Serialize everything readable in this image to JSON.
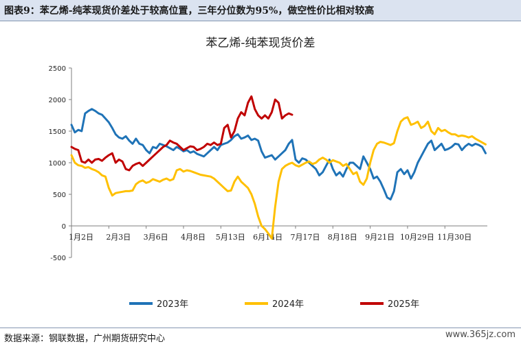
{
  "header": {
    "title": "图表9：苯乙烯-纯苯现货价差处于较高位置，三年分位数为95%，做空性价比相对较高"
  },
  "footer": {
    "source": "数据来源：钢联数据，广州期货研究中心",
    "watermark": "www.365jz.com"
  },
  "chart_data": {
    "type": "line",
    "title": "苯乙烯-纯苯现货价差",
    "x_tick_labels": [
      "1月2日",
      "2月3日",
      "3月6日",
      "4月8日",
      "5月13日",
      "6月14日",
      "7月17日",
      "8月18日",
      "9月21日",
      "10月29日",
      "11月30日"
    ],
    "x_tick_positions": [
      0,
      22,
      44,
      66,
      88,
      110,
      132,
      154,
      176,
      198,
      220
    ],
    "x_range": [
      0,
      245
    ],
    "ylim": [
      -500,
      2500
    ],
    "y_ticks": [
      -500,
      0,
      500,
      1000,
      1500,
      2000,
      2500
    ],
    "series": [
      {
        "name": "2023年",
        "color": "#1f73b7",
        "x": [
          0,
          2,
          4,
          6,
          8,
          10,
          12,
          14,
          16,
          18,
          20,
          22,
          24,
          26,
          28,
          30,
          32,
          34,
          36,
          38,
          40,
          42,
          44,
          46,
          48,
          50,
          52,
          54,
          56,
          58,
          60,
          62,
          64,
          66,
          68,
          70,
          72,
          74,
          76,
          78,
          80,
          82,
          84,
          86,
          88,
          90,
          92,
          94,
          96,
          98,
          100,
          102,
          104,
          106,
          108,
          110,
          112,
          114,
          116,
          118,
          120,
          122,
          124,
          126,
          128,
          130,
          132,
          134,
          136,
          138,
          140,
          142,
          144,
          146,
          148,
          150,
          152,
          154,
          156,
          158,
          160,
          162,
          164,
          166,
          168,
          170,
          172,
          174,
          176,
          178,
          180,
          182,
          184,
          186,
          188,
          190,
          192,
          194,
          196,
          198,
          200,
          202,
          204,
          206,
          208,
          210,
          212,
          214,
          216,
          218,
          220,
          222,
          224,
          226,
          228,
          230,
          232,
          234,
          236,
          238,
          240,
          242,
          244
        ],
        "values": [
          1600,
          1480,
          1520,
          1500,
          1780,
          1820,
          1850,
          1820,
          1780,
          1760,
          1700,
          1640,
          1550,
          1450,
          1400,
          1380,
          1420,
          1350,
          1300,
          1380,
          1300,
          1280,
          1200,
          1150,
          1250,
          1230,
          1300,
          1280,
          1260,
          1230,
          1200,
          1250,
          1220,
          1180,
          1200,
          1160,
          1180,
          1140,
          1120,
          1100,
          1150,
          1200,
          1250,
          1200,
          1280,
          1300,
          1320,
          1360,
          1420,
          1450,
          1380,
          1400,
          1430,
          1360,
          1380,
          1350,
          1180,
          1080,
          1100,
          1120,
          1050,
          1100,
          1150,
          1200,
          1300,
          1360,
          1050,
          1000,
          1070,
          1050,
          1000,
          950,
          900,
          800,
          850,
          950,
          1050,
          900,
          800,
          850,
          780,
          900,
          1000,
          1000,
          950,
          900,
          1100,
          1000,
          900,
          750,
          780,
          700,
          580,
          450,
          420,
          550,
          850,
          900,
          820,
          880,
          750,
          850,
          1000,
          1100,
          1200,
          1300,
          1350,
          1200,
          1250,
          1300,
          1200,
          1220,
          1250,
          1300,
          1290,
          1200,
          1260,
          1300,
          1270,
          1300,
          1280,
          1250,
          1150
        ]
      },
      {
        "name": "2024年",
        "color": "#ffc000",
        "x": [
          0,
          2,
          4,
          6,
          8,
          10,
          12,
          14,
          16,
          18,
          20,
          22,
          24,
          26,
          28,
          30,
          32,
          34,
          36,
          38,
          40,
          42,
          44,
          46,
          48,
          50,
          52,
          54,
          56,
          58,
          60,
          62,
          64,
          66,
          68,
          70,
          72,
          74,
          76,
          78,
          80,
          82,
          84,
          86,
          88,
          90,
          92,
          94,
          96,
          98,
          100,
          102,
          104,
          106,
          108,
          110,
          112,
          114,
          116,
          118,
          120,
          122,
          124,
          126,
          128,
          130,
          132,
          134,
          136,
          138,
          140,
          142,
          144,
          146,
          148,
          150,
          152,
          154,
          156,
          158,
          160,
          162,
          164,
          166,
          168,
          170,
          172,
          174,
          176,
          178,
          180,
          182,
          184,
          186,
          188,
          190,
          192,
          194,
          196,
          198,
          200,
          202,
          204,
          206,
          208,
          210,
          212,
          214,
          216,
          218,
          220,
          222,
          224,
          226,
          228,
          230,
          232,
          234,
          236,
          238,
          240,
          242,
          244
        ],
        "values": [
          1120,
          1000,
          960,
          950,
          920,
          930,
          900,
          880,
          850,
          800,
          780,
          600,
          480,
          520,
          530,
          540,
          550,
          550,
          560,
          660,
          700,
          720,
          680,
          700,
          740,
          720,
          700,
          730,
          750,
          720,
          740,
          880,
          900,
          860,
          880,
          870,
          850,
          830,
          810,
          800,
          790,
          780,
          750,
          700,
          650,
          600,
          550,
          560,
          700,
          780,
          700,
          650,
          600,
          500,
          350,
          150,
          0,
          -50,
          -120,
          -200,
          300,
          700,
          900,
          950,
          980,
          1000,
          960,
          940,
          970,
          1000,
          1020,
          980,
          1000,
          1050,
          1080,
          1050,
          1000,
          1040,
          1020,
          1000,
          950,
          980,
          900,
          820,
          850,
          700,
          650,
          750,
          1000,
          1200,
          1300,
          1330,
          1320,
          1300,
          1280,
          1310,
          1500,
          1650,
          1700,
          1720,
          1600,
          1620,
          1650,
          1550,
          1580,
          1650,
          1500,
          1450,
          1550,
          1500,
          1520,
          1480,
          1450,
          1450,
          1420,
          1430,
          1420,
          1400,
          1420,
          1380,
          1350,
          1320,
          1290
        ]
      },
      {
        "name": "2025年",
        "color": "#c00000",
        "x": [
          0,
          2,
          4,
          6,
          8,
          10,
          12,
          14,
          16,
          18,
          20,
          22,
          24,
          26,
          28,
          30,
          32,
          34,
          36,
          38,
          40,
          42,
          44,
          46,
          48,
          50,
          52,
          54,
          56,
          58,
          60,
          62,
          64,
          66,
          68,
          70,
          72,
          74,
          76,
          78,
          80,
          82,
          84,
          86,
          88,
          90,
          92,
          94,
          96,
          98,
          100,
          102,
          104,
          106,
          108,
          110,
          112,
          114,
          116,
          118,
          120,
          122,
          124,
          126,
          128,
          130
        ],
        "values": [
          1250,
          1220,
          1200,
          1020,
          1000,
          1050,
          1000,
          1050,
          1060,
          1030,
          1080,
          1120,
          1150,
          1000,
          1050,
          1020,
          900,
          880,
          950,
          980,
          1000,
          950,
          1000,
          1050,
          1100,
          1150,
          1200,
          1250,
          1280,
          1350,
          1320,
          1300,
          1250,
          1200,
          1230,
          1260,
          1250,
          1200,
          1220,
          1250,
          1300,
          1280,
          1320,
          1280,
          1300,
          1550,
          1600,
          1400,
          1500,
          1700,
          1800,
          1750,
          1950,
          2050,
          1850,
          1750,
          1700,
          1750,
          1700,
          1800,
          2000,
          1950,
          1700,
          1750,
          1780,
          1760
        ]
      }
    ]
  }
}
